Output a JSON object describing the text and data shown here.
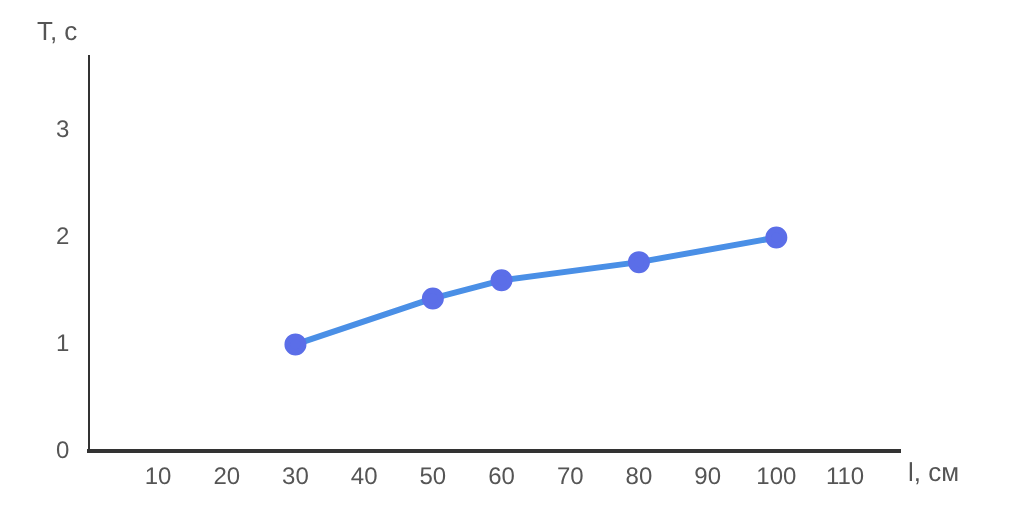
{
  "chart_data": {
    "type": "line",
    "xlabel": "l, см",
    "ylabel": "T, с",
    "x": [
      30,
      50,
      60,
      80,
      100
    ],
    "series": [
      {
        "color": "#4a8fe6",
        "values": [
          1.0,
          1.43,
          1.6,
          1.77,
          2.0
        ]
      }
    ],
    "xlim": [
      0,
      118
    ],
    "xticks": [
      10,
      20,
      30,
      40,
      50,
      60,
      70,
      80,
      90,
      100,
      110
    ],
    "ylim": [
      0,
      3.7
    ],
    "yticks": [
      0,
      1,
      2,
      3
    ],
    "grid": false,
    "legend": false,
    "marker": "circle",
    "line_style": "solid"
  }
}
